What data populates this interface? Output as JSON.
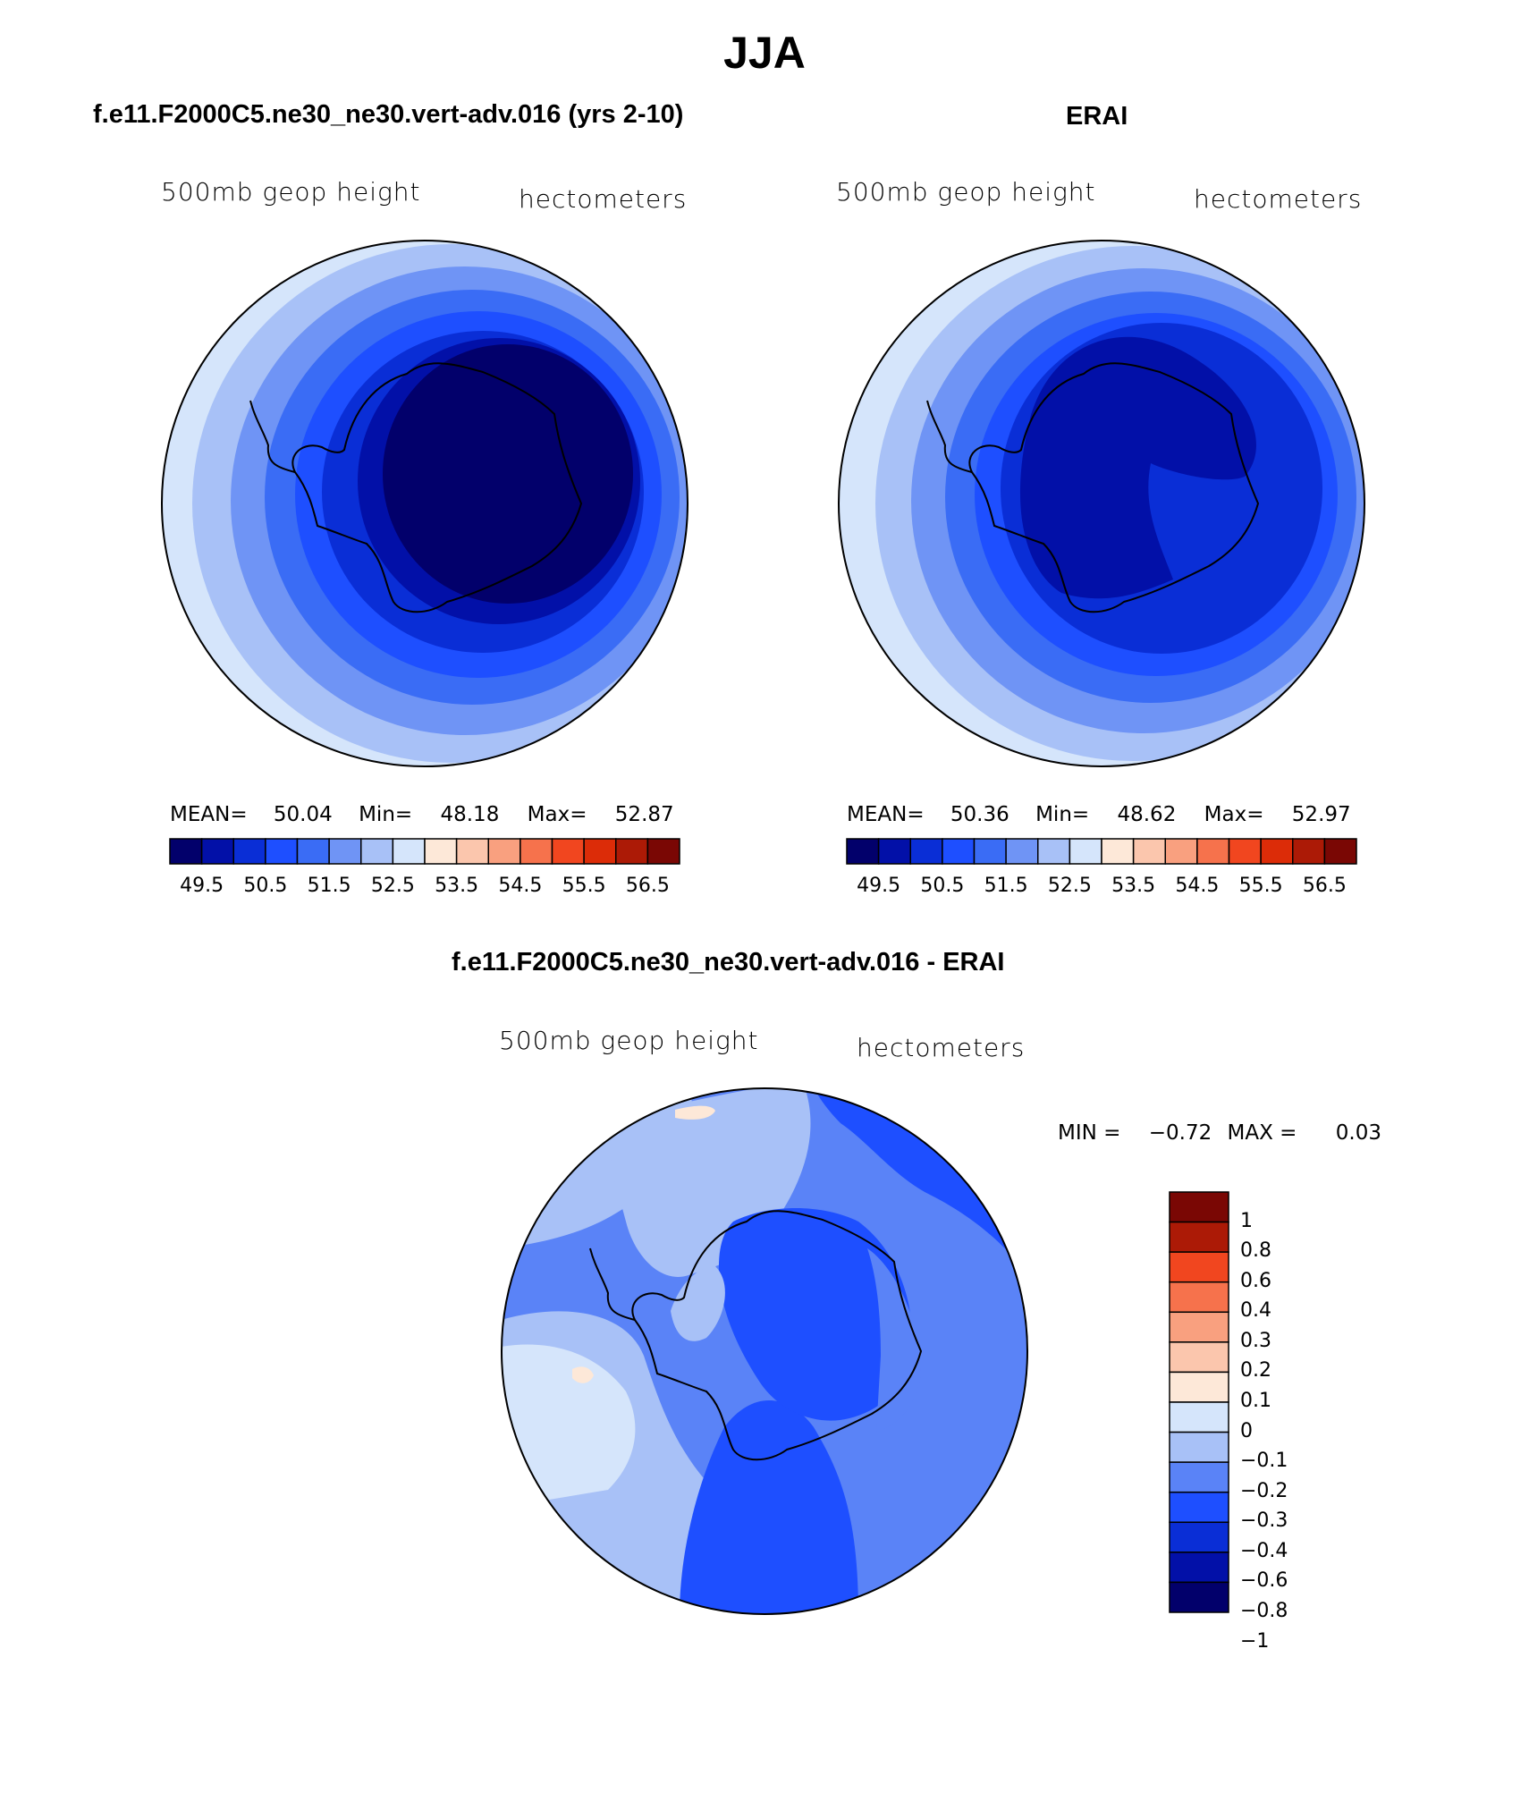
{
  "figure": {
    "title": "JJA",
    "colors": {
      "abs_scale": [
        "#02006b",
        "#0210a8",
        "#0a2ed6",
        "#1e4fff",
        "#3a6cf5",
        "#6f94f5",
        "#a8c1f7",
        "#d5e5fb",
        "#fde8d8",
        "#fbc6ad",
        "#f9a07f",
        "#f6724c",
        "#f1461f",
        "#dc2c08",
        "#ac1a06",
        "#7a0704"
      ],
      "diff_scale": [
        "#02006b",
        "#0210a8",
        "#0a2ed6",
        "#1e4fff",
        "#5a83f7",
        "#a8c1f7",
        "#d5e5fb",
        "#fde8d8",
        "#fbc6ad",
        "#f9a07f",
        "#f6724c",
        "#f1461f",
        "#ac1a06",
        "#7a0704"
      ]
    }
  },
  "panels": {
    "model": {
      "title": "f.e11.F2000C5.ne30_ne30.vert-adv.016 (yrs 2-10)",
      "left_label": "500mb geop height",
      "right_label": "hectometers",
      "mean_label": "MEAN=",
      "mean": "50.04",
      "min_label": "Min=",
      "min": "48.18",
      "max_label": "Max=",
      "max": "52.87",
      "colorbar_labels": [
        "49.5",
        "50.5",
        "51.5",
        "52.5",
        "53.5",
        "54.5",
        "55.5",
        "56.5"
      ]
    },
    "obs": {
      "title": "ERAI",
      "left_label": "500mb geop height",
      "right_label": "hectometers",
      "mean_label": "MEAN=",
      "mean": "50.36",
      "min_label": "Min=",
      "min": "48.62",
      "max_label": "Max=",
      "max": "52.97",
      "colorbar_labels": [
        "49.5",
        "50.5",
        "51.5",
        "52.5",
        "53.5",
        "54.5",
        "55.5",
        "56.5"
      ]
    },
    "diff": {
      "title": "f.e11.F2000C5.ne30_ne30.vert-adv.016 - ERAI",
      "left_label": "500mb geop height",
      "right_label": "hectometers",
      "min_label": "MIN =",
      "min": "−0.72",
      "max_label": "MAX =",
      "max": "0.03",
      "colorbar_labels": [
        "1",
        "0.8",
        "0.6",
        "0.4",
        "0.3",
        "0.2",
        "0.1",
        "0",
        "−0.1",
        "−0.2",
        "−0.3",
        "−0.4",
        "−0.6",
        "−0.8",
        "−1"
      ]
    }
  }
}
